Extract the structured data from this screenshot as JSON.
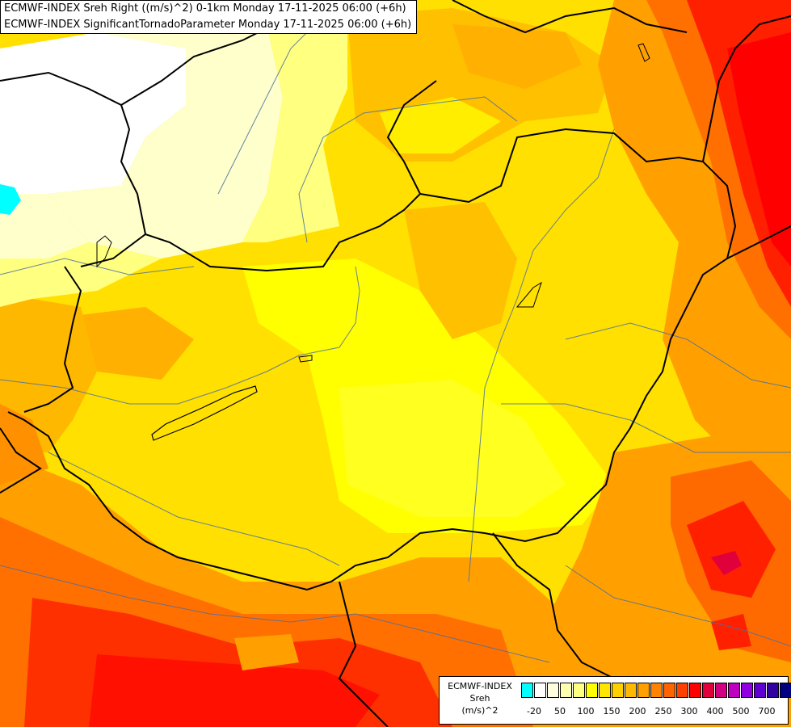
{
  "header": {
    "title_line1": "ECMWF-INDEX Sreh Right ((m/s)^2) 0-1km Monday 17-11-2025 06:00 (+6h)",
    "title_line2": "ECMWF-INDEX SignificantTornadoParameter Monday 17-11-2025 06:00 (+6h)"
  },
  "legend": {
    "line1": "ECMWF-INDEX",
    "line2": "Sreh",
    "line3": "(m/s)^2",
    "colors": [
      "#00ffff",
      "#ffffff",
      "#ffffe0",
      "#ffffb0",
      "#ffff80",
      "#ffff00",
      "#ffe600",
      "#ffd000",
      "#ffb800",
      "#ffa000",
      "#ff8200",
      "#ff6400",
      "#ff4000",
      "#ff0000",
      "#e0003c",
      "#d00080",
      "#c000c0",
      "#9000e0",
      "#6000d0",
      "#3000a0",
      "#000080"
    ],
    "tick_labels": [
      "-20",
      "50",
      "100",
      "150",
      "200",
      "250",
      "300",
      "400",
      "500",
      "700"
    ]
  },
  "colors": {
    "bg_yellow": "#ffff00",
    "pale_yellow": "#ffffb0",
    "light_orange": "#ffd000",
    "orange": "#ffa000",
    "dark_orange": "#ff6400",
    "red": "#ff0000",
    "cyan": "#00ffff"
  }
}
